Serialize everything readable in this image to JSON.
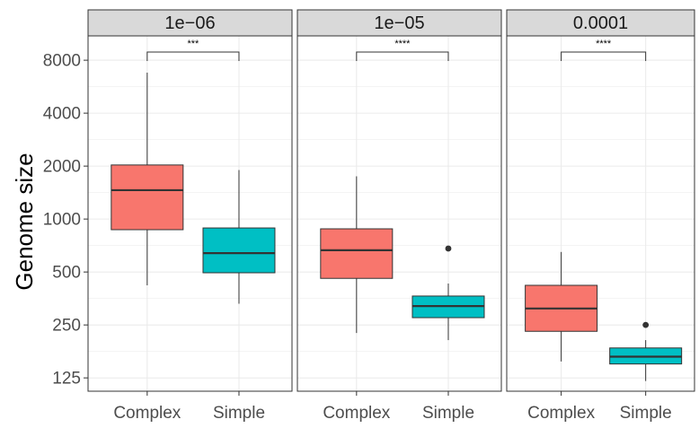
{
  "chart_data": {
    "type": "boxplot",
    "ylabel": "Genome size",
    "xlabel": "",
    "y_scale": "log2",
    "y_ticks": [
      125,
      250,
      500,
      1000,
      2000,
      4000,
      8000
    ],
    "ylim": [
      105,
      11000
    ],
    "categories": [
      "Complex",
      "Simple"
    ],
    "fill_colors": {
      "Complex": "#F8766D",
      "Simple": "#00BFC4"
    },
    "grid": true,
    "legend": "none",
    "panels": [
      {
        "strip": "1e−06",
        "significance": "***",
        "boxes": [
          {
            "category": "Complex",
            "whisker_low": 420,
            "q1": 870,
            "median": 1460,
            "q3": 2030,
            "whisker_high": 6800,
            "outliers": []
          },
          {
            "category": "Simple",
            "whisker_low": 330,
            "q1": 495,
            "median": 640,
            "q3": 890,
            "whisker_high": 1900,
            "outliers": []
          }
        ]
      },
      {
        "strip": "1e−05",
        "significance": "****",
        "boxes": [
          {
            "category": "Complex",
            "whisker_low": 225,
            "q1": 460,
            "median": 665,
            "q3": 880,
            "whisker_high": 1750,
            "outliers": []
          },
          {
            "category": "Simple",
            "whisker_low": 205,
            "q1": 275,
            "median": 320,
            "q3": 365,
            "whisker_high": 430,
            "outliers": [
              680
            ]
          }
        ]
      },
      {
        "strip": "0.0001",
        "significance": "****",
        "boxes": [
          {
            "category": "Complex",
            "whisker_low": 155,
            "q1": 230,
            "median": 310,
            "q3": 420,
            "whisker_high": 650,
            "outliers": []
          },
          {
            "category": "Simple",
            "whisker_low": 120,
            "q1": 150,
            "median": 165,
            "q3": 185,
            "whisker_high": 205,
            "outliers": [
              250
            ]
          }
        ]
      }
    ]
  }
}
